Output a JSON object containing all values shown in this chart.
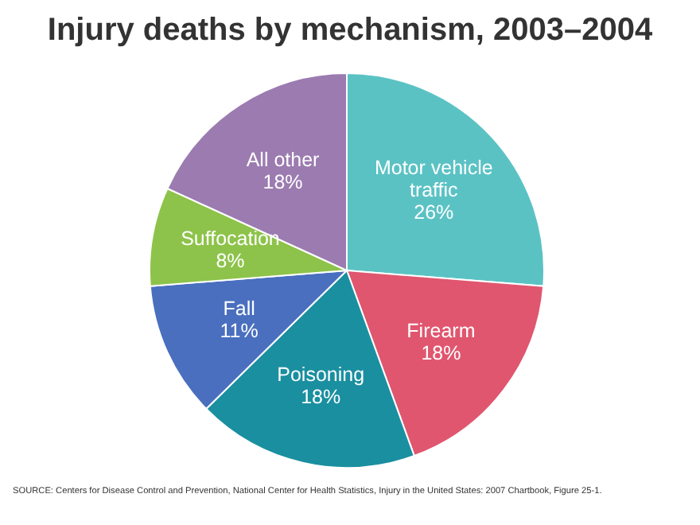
{
  "chart_data": {
    "type": "pie",
    "title": "Injury deaths by mechanism, 2003–2004",
    "categories": [
      "Motor vehicle traffic",
      "Firearm",
      "Poisoning",
      "Fall",
      "Suffocation",
      "All other"
    ],
    "values": [
      26,
      18,
      18,
      11,
      8,
      18
    ],
    "value_labels": [
      "26%",
      "18%",
      "18%",
      "11%",
      "8%",
      "18%"
    ],
    "colors": [
      "#5bc2c4",
      "#e0566f",
      "#1a8fa0",
      "#4a6fbf",
      "#8dc34a",
      "#9b7bb0"
    ],
    "legend": false,
    "annotations": [
      "SOURCE: Centers for Disease Control and Prevention, National Center for Health Statistics, Injury in the United States: 2007 Chartbook, Figure 25-1."
    ]
  }
}
